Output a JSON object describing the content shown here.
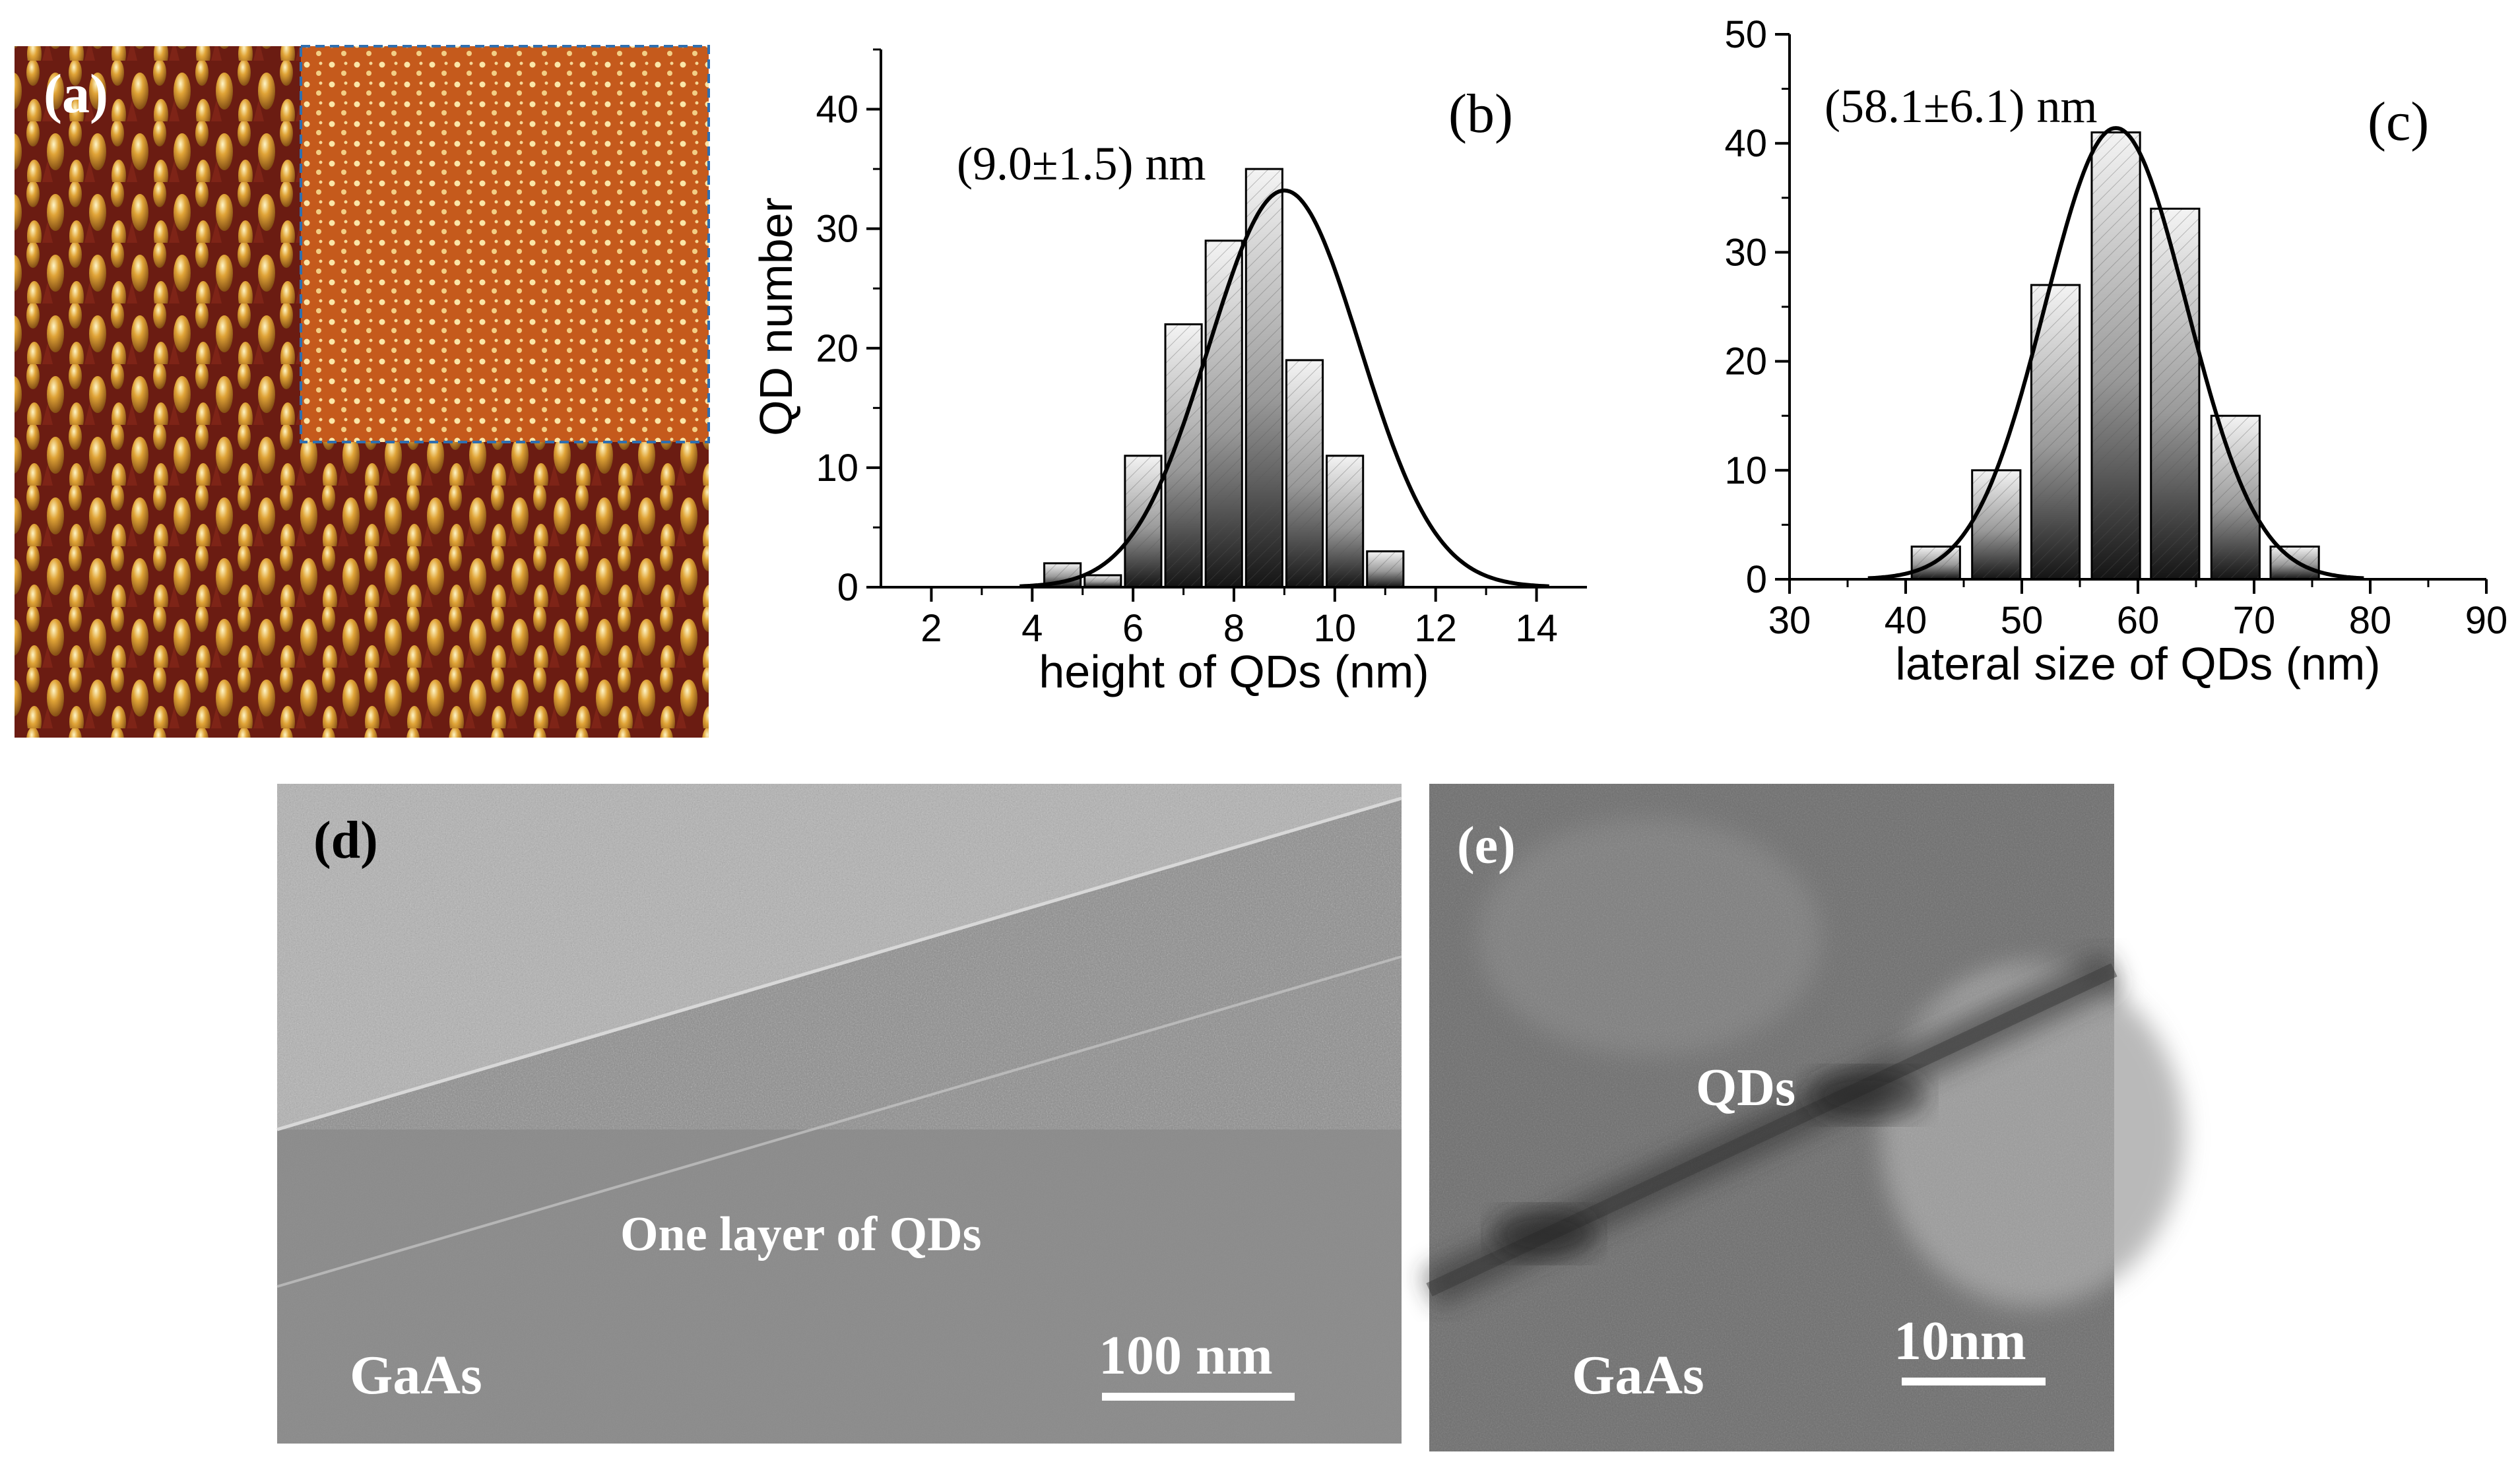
{
  "panels": {
    "a": {
      "label": "(a)"
    },
    "d": {
      "label": "(d)",
      "layer_label": "One layer of QDs",
      "substrate_label": "GaAs",
      "scale_label": "100 nm"
    },
    "e": {
      "label": "(e)",
      "qd_label": "QDs",
      "substrate_label": "GaAs",
      "scale_label": "10nm"
    }
  },
  "colors": {
    "afm_base": "#7a1e12",
    "afm_inset": "#c8561c",
    "inset_border": "#2f6fb0",
    "tem_gray": "#8a8a8a",
    "text_white": "#ffffff",
    "curve": "#000000"
  },
  "chart_data": [
    {
      "type": "bar",
      "panel_label": "(b)",
      "annotation": "(9.0±1.5) nm",
      "xlabel": "height of QDs (nm)",
      "ylabel": "QD number",
      "xlim": [
        1,
        15
      ],
      "ylim": [
        0,
        45
      ],
      "xticks": [
        2,
        4,
        6,
        8,
        10,
        12,
        14
      ],
      "yticks": [
        0,
        10,
        20,
        30,
        40
      ],
      "bin_width": 0.8,
      "bin_centers": [
        4.6,
        5.4,
        6.2,
        7.0,
        7.8,
        8.6,
        9.4,
        10.2,
        11.0,
        11.8,
        12.6
      ],
      "values": [
        2,
        1,
        11,
        22,
        29,
        35,
        19,
        11,
        3,
        0,
        0
      ],
      "fit": {
        "type": "gaussian",
        "mean": 9.0,
        "sigma": 1.5,
        "peak": 33.2
      }
    },
    {
      "type": "bar",
      "panel_label": "(c)",
      "annotation": "(58.1±6.1) nm",
      "xlabel": "lateral size of QDs (nm)",
      "ylabel": "",
      "xlim": [
        30,
        90
      ],
      "ylim": [
        0,
        50
      ],
      "xticks": [
        30,
        40,
        50,
        60,
        70,
        80,
        90
      ],
      "yticks": [
        0,
        10,
        20,
        30,
        40,
        50
      ],
      "bin_width": 4.5,
      "bin_centers": [
        42.6,
        47.8,
        52.9,
        58.1,
        63.2,
        68.4,
        73.5
      ],
      "values": [
        3,
        10,
        27,
        41,
        34,
        15,
        3
      ],
      "fit": {
        "type": "gaussian",
        "mean": 58.1,
        "sigma": 6.1,
        "peak": 41.4
      }
    }
  ]
}
